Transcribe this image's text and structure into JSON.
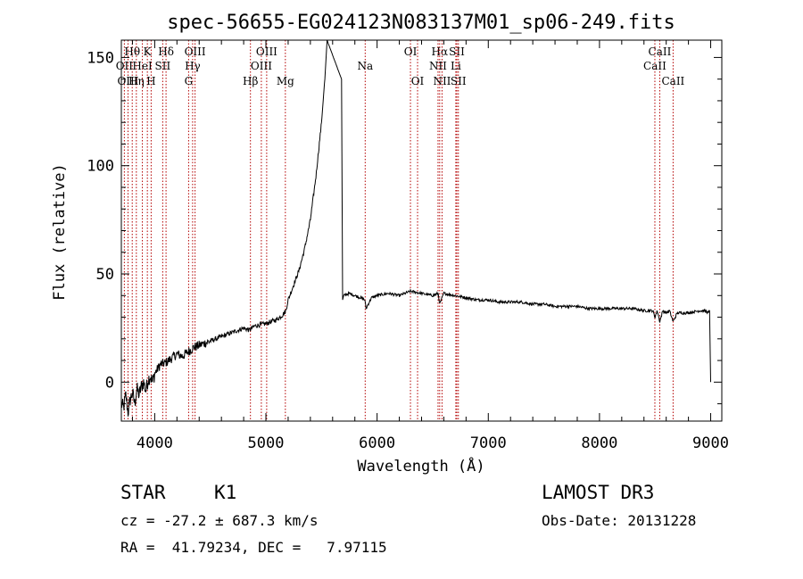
{
  "chart_data": {
    "type": "line",
    "title": "spec-56655-EG024123N083137M01_sp06-249.fits",
    "xlabel": "Wavelength (Å)",
    "ylabel": "Flux (relative)",
    "xlim": [
      3700,
      9100
    ],
    "ylim": [
      -18,
      158
    ],
    "xticks": [
      4000,
      5000,
      6000,
      7000,
      8000,
      9000
    ],
    "yticks": [
      0,
      50,
      100,
      150
    ],
    "spectrum": {
      "x": [
        3700,
        3720,
        3740,
        3760,
        3780,
        3800,
        3820,
        3840,
        3860,
        3880,
        3900,
        3920,
        3940,
        3960,
        3980,
        4000,
        4050,
        4100,
        4150,
        4200,
        4250,
        4300,
        4350,
        4400,
        4500,
        4600,
        4700,
        4800,
        4850,
        4900,
        5000,
        5100,
        5150,
        5180,
        5200,
        5250,
        5300,
        5350,
        5400,
        5450,
        5500,
        5530,
        5550,
        5680,
        5690,
        5700,
        5750,
        5800,
        5850,
        5890,
        5900,
        5950,
        6000,
        6100,
        6200,
        6300,
        6400,
        6500,
        6550,
        6563,
        6600,
        6700,
        6800,
        6900,
        7000,
        7100,
        7200,
        7300,
        7400,
        7500,
        7600,
        7700,
        7800,
        7900,
        8000,
        8100,
        8200,
        8300,
        8400,
        8480,
        8498,
        8520,
        8542,
        8570,
        8600,
        8630,
        8662,
        8700,
        8800,
        8900,
        8950,
        8980,
        8990,
        9000
      ],
      "y": [
        -10,
        -12,
        -6,
        -14,
        -8,
        -5,
        -10,
        -3,
        -6,
        -2,
        0,
        -4,
        1,
        3,
        0,
        4,
        8,
        9,
        11,
        13,
        12,
        14,
        16,
        17,
        19,
        21,
        23,
        25,
        24,
        26,
        27,
        29,
        31,
        33,
        38,
        45,
        52,
        62,
        75,
        95,
        120,
        140,
        158,
        140,
        38,
        40,
        41,
        40,
        39,
        38,
        34,
        39,
        40,
        41,
        40,
        42,
        41,
        40,
        41,
        36,
        41,
        40,
        39,
        38,
        38,
        37,
        37,
        37,
        36,
        36,
        35,
        35,
        35,
        34,
        34,
        34,
        34,
        34,
        33,
        33,
        30,
        33,
        28,
        33,
        32,
        33,
        28,
        32,
        32,
        33,
        33,
        32,
        33,
        0
      ]
    },
    "lines": [
      {
        "label": "Hθ",
        "wl": 3798,
        "row": 0
      },
      {
        "label": "K",
        "wl": 3934,
        "row": 0
      },
      {
        "label": "Hδ",
        "wl": 4102,
        "row": 0
      },
      {
        "label": "OIII",
        "wl": 4363,
        "row": 0
      },
      {
        "label": "OIII",
        "wl": 5007,
        "row": 0
      },
      {
        "label": "OI",
        "wl": 6300,
        "row": 0
      },
      {
        "label": "Hα",
        "wl": 6563,
        "row": 0
      },
      {
        "label": "SII",
        "wl": 6717,
        "row": 0
      },
      {
        "label": "CaII",
        "wl": 8542,
        "row": 0
      },
      {
        "label": "OII",
        "wl": 3727,
        "row": 1
      },
      {
        "label": "HeI",
        "wl": 3889,
        "row": 1
      },
      {
        "label": "SII",
        "wl": 4072,
        "row": 1
      },
      {
        "label": "Hγ",
        "wl": 4341,
        "row": 1
      },
      {
        "label": "OIII",
        "wl": 4959,
        "row": 1
      },
      {
        "label": "Na",
        "wl": 5893,
        "row": 1
      },
      {
        "label": "NII",
        "wl": 6548,
        "row": 1
      },
      {
        "label": "Li",
        "wl": 6708,
        "row": 1
      },
      {
        "label": "CaII",
        "wl": 8498,
        "row": 1
      },
      {
        "label": "OIII",
        "wl": 3760,
        "row": 2
      },
      {
        "label": "Hη",
        "wl": 3835,
        "row": 2
      },
      {
        "label": "H",
        "wl": 3968,
        "row": 2
      },
      {
        "label": "G",
        "wl": 4305,
        "row": 2
      },
      {
        "label": "Hβ",
        "wl": 4861,
        "row": 2
      },
      {
        "label": "Mg",
        "wl": 5175,
        "row": 2
      },
      {
        "label": "OI",
        "wl": 6364,
        "row": 2
      },
      {
        "label": "NII",
        "wl": 6584,
        "row": 2
      },
      {
        "label": "SII",
        "wl": 6731,
        "row": 2
      },
      {
        "label": "CaII",
        "wl": 8662,
        "row": 2
      }
    ]
  },
  "info": {
    "object_class": "STAR",
    "subclass": "K1",
    "survey": "LAMOST DR3",
    "cz": "cz = -27.2 ± 687.3 km/s",
    "obs_date": "Obs-Date: 20131228",
    "radec": "RA =  41.79234, DEC =   7.97115"
  },
  "colors": {
    "line_markers": "#b30000",
    "spectrum": "#000000"
  }
}
